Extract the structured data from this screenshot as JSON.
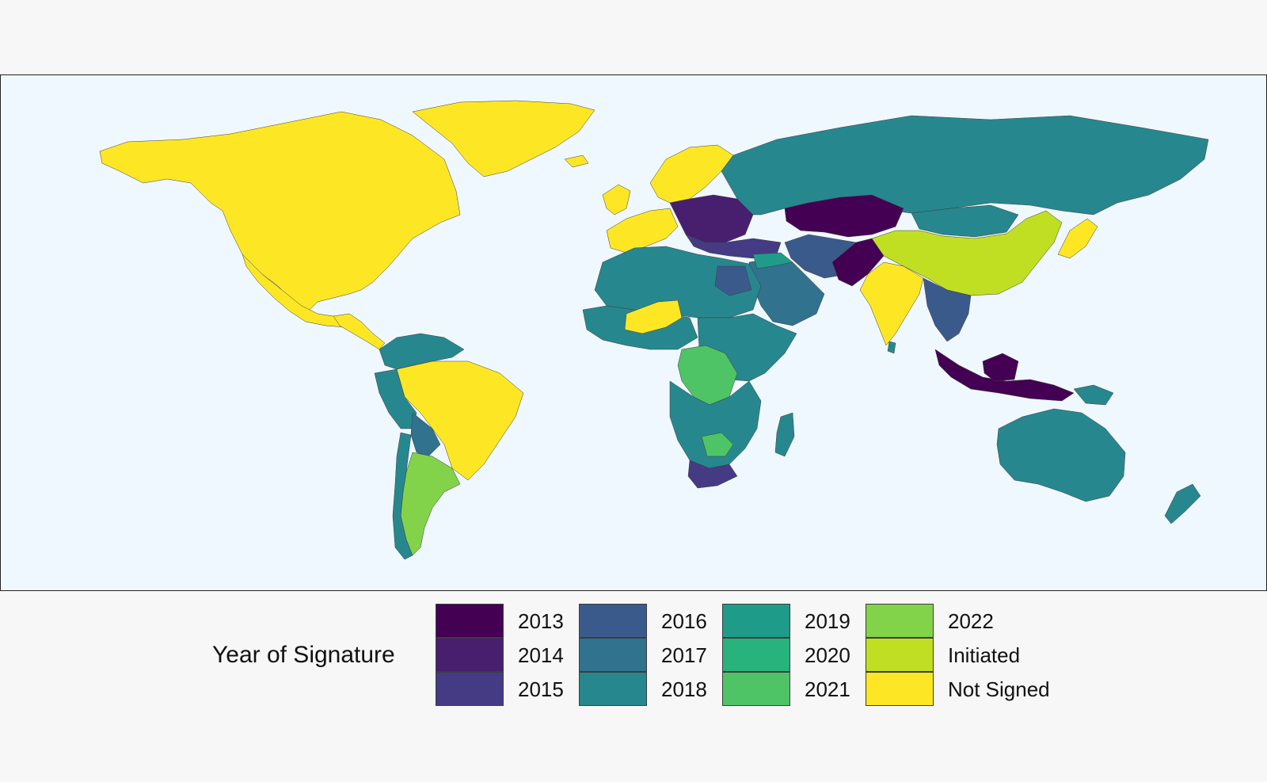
{
  "legend": {
    "title": "Year of Signature",
    "items": [
      {
        "label": "2013",
        "color": "#440154"
      },
      {
        "label": "2014",
        "color": "#481e6f"
      },
      {
        "label": "2015",
        "color": "#443b84"
      },
      {
        "label": "2016",
        "color": "#3b5a8c"
      },
      {
        "label": "2017",
        "color": "#31728e"
      },
      {
        "label": "2018",
        "color": "#26888e"
      },
      {
        "label": "2019",
        "color": "#1f9c89"
      },
      {
        "label": "2020",
        "color": "#28b37c"
      },
      {
        "label": "2021",
        "color": "#4ec466"
      },
      {
        "label": "2022",
        "color": "#82d34a"
      },
      {
        "label": "Initiated",
        "color": "#c0df22"
      },
      {
        "label": "Not Signed",
        "color": "#fde725"
      }
    ]
  },
  "map": {
    "background": "#f0f8ff",
    "border_color": "#3d3d3d"
  }
}
